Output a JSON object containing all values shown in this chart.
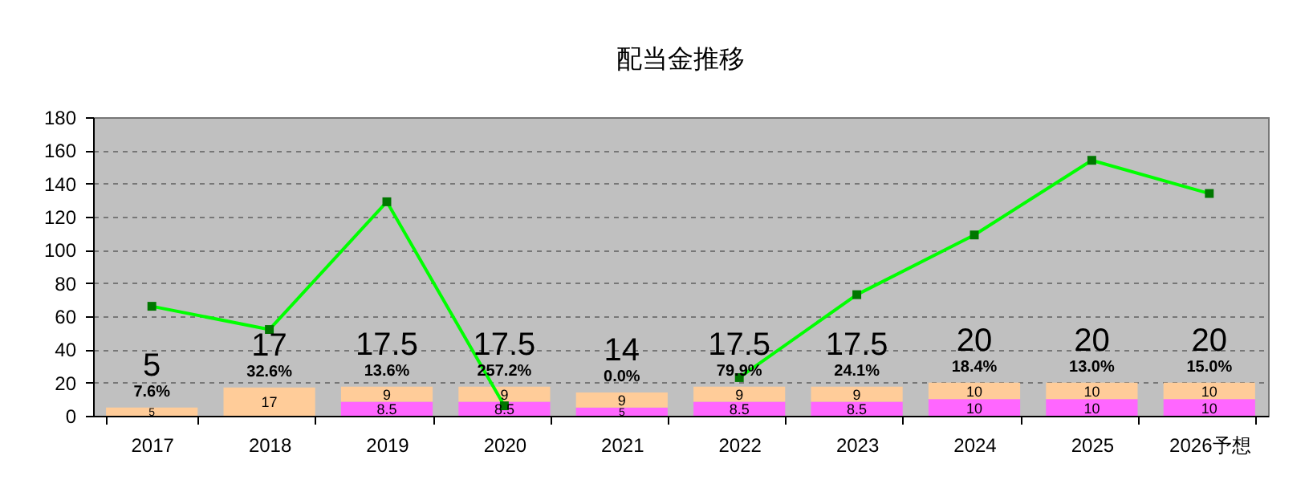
{
  "chart_data": {
    "type": "bar",
    "title": "配当金推移",
    "categories": [
      "2017",
      "2018",
      "2019",
      "2020",
      "2021",
      "2022",
      "2023",
      "2024",
      "2025",
      "2026予想"
    ],
    "stacked": true,
    "series": [
      {
        "color": "#ff66ff",
        "values": [
          null,
          null,
          8.5,
          8.5,
          5,
          8.5,
          8.5,
          10,
          10,
          10
        ],
        "value_labels": [
          null,
          null,
          "8.5",
          "8.5",
          "5",
          "8.5",
          "8.5",
          "10",
          "10",
          "10"
        ]
      },
      {
        "color": "#ffcc99",
        "values": [
          5,
          17,
          9,
          9,
          9,
          9,
          9,
          10,
          10,
          10
        ],
        "value_labels": [
          "5",
          "17",
          "9",
          "9",
          "9",
          "9",
          "9",
          "10",
          "10",
          "10"
        ]
      },
      {
        "type": "line",
        "color": "#00ff00",
        "values": [
          66,
          52,
          129,
          6,
          null,
          23,
          73,
          109,
          154,
          134
        ]
      }
    ],
    "totals": [
      "5",
      "17",
      "17.5",
      "17.5",
      "14",
      "17.5",
      "17.5",
      "20",
      "20",
      "20"
    ],
    "annotations": [
      {
        "text": "7.6%",
        "x": "2017",
        "y": 5
      },
      {
        "text": "32.6%",
        "x": "2018",
        "y": 17
      },
      {
        "text": "13.6%",
        "x": "2019",
        "y": 17.5
      },
      {
        "text": "257.2%",
        "x": "2020",
        "y": 17.5
      },
      {
        "text": "0.0%",
        "x": "2021",
        "y": 14
      },
      {
        "text": "79.9%",
        "x": "2022",
        "y": 17.5
      },
      {
        "text": "24.1%",
        "x": "2023",
        "y": 17.5
      },
      {
        "text": "18.4%",
        "x": "2024",
        "y": 20
      },
      {
        "text": "13.0%",
        "x": "2025",
        "y": 20
      },
      {
        "text": "15.0%",
        "x": "2026予想",
        "y": 20
      }
    ],
    "ylim": [
      0,
      180
    ],
    "yticks": [
      0,
      20,
      40,
      60,
      80,
      100,
      120,
      140,
      160,
      180
    ],
    "grid": "y",
    "marker": "square"
  }
}
